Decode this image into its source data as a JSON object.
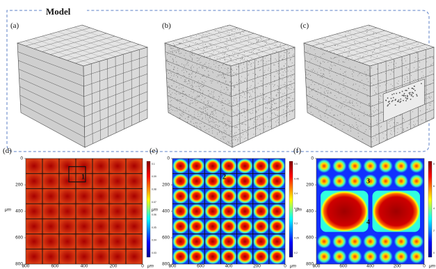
{
  "header": {
    "title": "Model"
  },
  "model_panels": [
    "(a)",
    "(b)",
    "(c)"
  ],
  "maps": [
    {
      "label": "(d)",
      "y_axis": {
        "ticks": [
          "0",
          "200",
          "400",
          "600",
          "800"
        ],
        "unit": "μm"
      },
      "x_axis": {
        "ticks": [
          "800",
          "600",
          "400",
          "200",
          "0"
        ],
        "unit": "μm"
      },
      "colorbar": [
        "0.1",
        "0.09",
        "0.08",
        "0.07",
        "0.06",
        "0.05",
        "0.04",
        "0.03"
      ],
      "annotations": [
        "1"
      ]
    },
    {
      "label": "(e)",
      "y_axis": {
        "ticks": [
          "0",
          "200",
          "400",
          "600",
          "800"
        ],
        "unit": "μm"
      },
      "x_axis": {
        "ticks": [
          "800",
          "600",
          "400",
          "200",
          "0"
        ],
        "unit": "μm"
      },
      "colorbar": [
        "0.5",
        "0.45",
        "0.4",
        "0.35",
        "0.3",
        "0.25",
        "0.2"
      ],
      "annotations": [
        "2"
      ]
    },
    {
      "label": "(f)",
      "y_axis": {
        "ticks": [
          "0",
          "200",
          "400",
          "600",
          "800"
        ],
        "unit": "μm"
      },
      "x_axis": {
        "ticks": [
          "800",
          "600",
          "400",
          "200",
          "0"
        ],
        "unit": "μm"
      },
      "colorbar": [
        "8",
        "6",
        "4",
        "2",
        "0"
      ],
      "annotations": [
        "3",
        "4"
      ]
    }
  ]
}
